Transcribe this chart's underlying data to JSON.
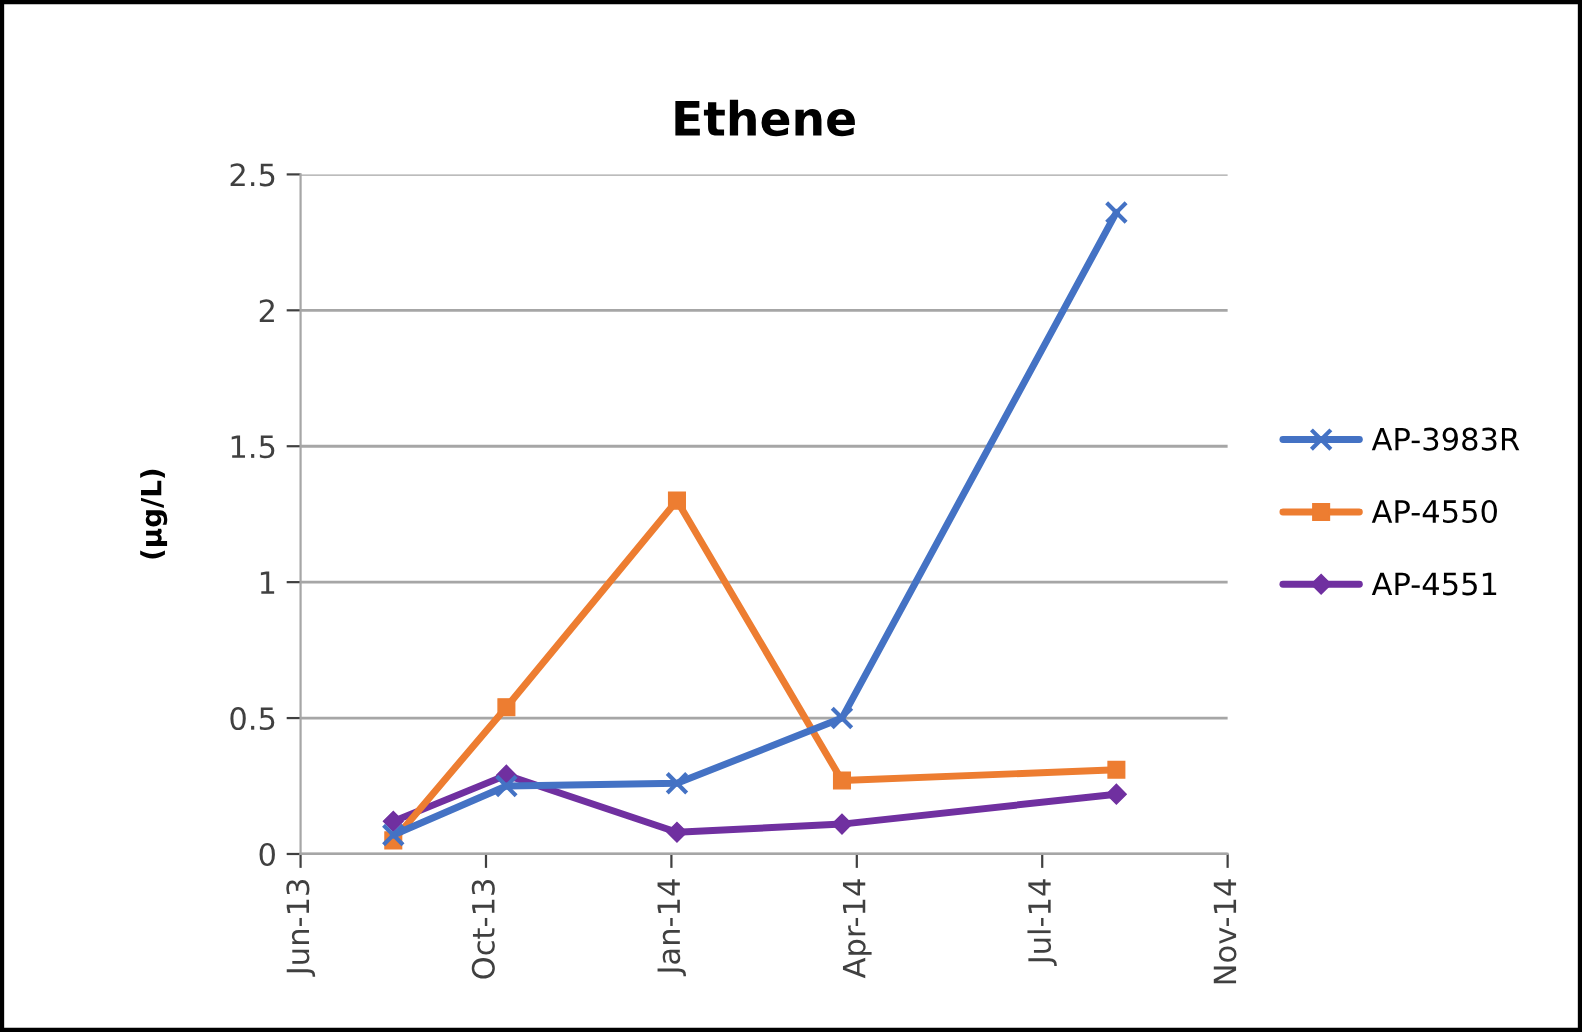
{
  "chart_data": {
    "type": "line",
    "title": "Ethene",
    "ylabel": "(µg/L)",
    "x": [
      "2013-08-14",
      "2013-10-14",
      "2014-01-14",
      "2014-04-13",
      "2014-09-08"
    ],
    "series": [
      {
        "name": "AP-3983R",
        "color": "#4472c4",
        "marker": "cross",
        "values": [
          0.07,
          0.25,
          0.26,
          0.5,
          2.36
        ]
      },
      {
        "name": "AP-4550",
        "color": "#ed7d31",
        "marker": "square",
        "values": [
          0.05,
          0.54,
          1.3,
          0.27,
          0.31
        ]
      },
      {
        "name": "AP-4551",
        "color": "#7030a0",
        "marker": "diamond",
        "values": [
          0.12,
          0.29,
          0.08,
          0.11,
          0.22
        ]
      }
    ],
    "xlim": [
      "2013-06-25",
      "2014-11-07"
    ],
    "xticks": [
      {
        "value": "2013-06-25",
        "label": "Jun-13"
      },
      {
        "value": "2013-10-03",
        "label": "Oct-13"
      },
      {
        "value": "2014-01-11",
        "label": "Jan-14"
      },
      {
        "value": "2014-04-21",
        "label": "Apr-14"
      },
      {
        "value": "2014-07-30",
        "label": "Jul-14"
      },
      {
        "value": "2014-11-07",
        "label": "Nov-14"
      }
    ],
    "ylim": [
      0,
      2.5
    ],
    "yticks": [
      0,
      0.5,
      1,
      1.5,
      2,
      2.5
    ],
    "grid": "y",
    "legend": "right",
    "line_style": "solid"
  }
}
